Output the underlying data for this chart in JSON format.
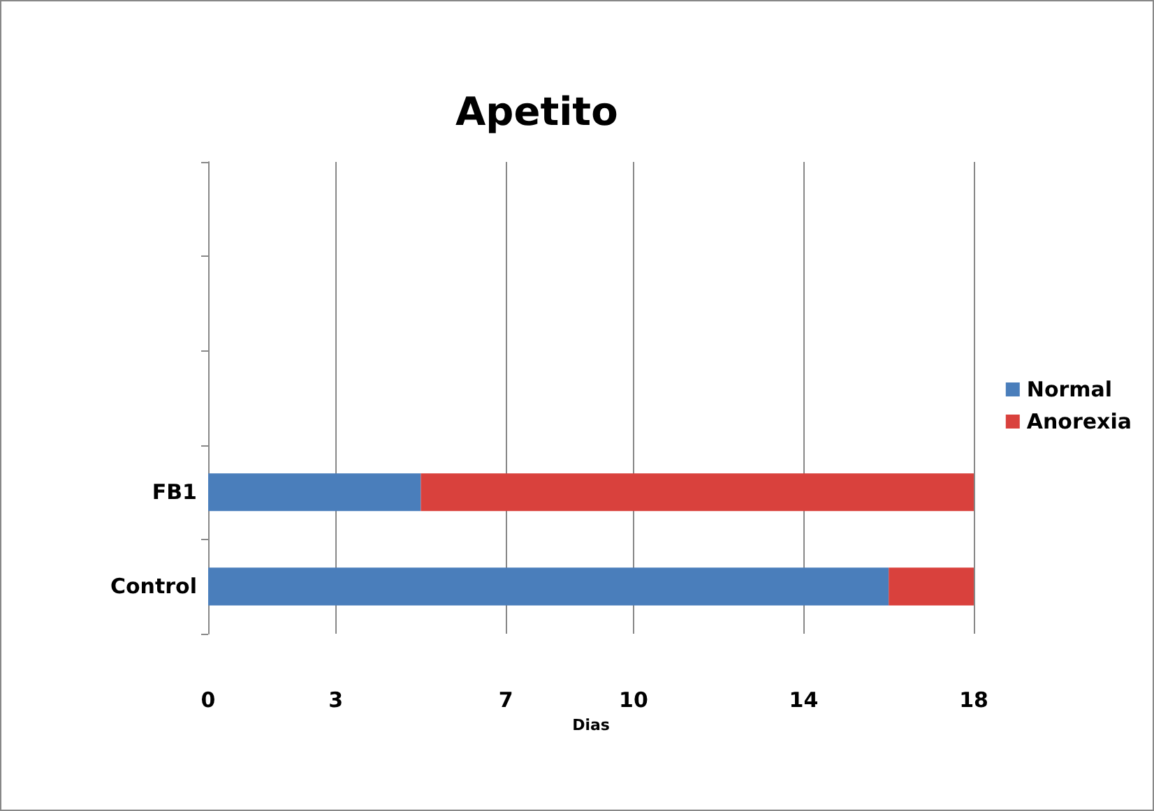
{
  "chart_data": {
    "type": "bar",
    "orientation": "horizontal",
    "stacked": true,
    "title": "Apetito",
    "xlabel": "Dias",
    "categories": [
      null,
      null,
      null,
      "FB1",
      "Control"
    ],
    "series": [
      {
        "name": "Normal",
        "color": "#4a7ebb",
        "values": [
          null,
          null,
          null,
          5,
          16
        ]
      },
      {
        "name": "Anorexia",
        "color": "#d9413d",
        "values": [
          null,
          null,
          null,
          13,
          2
        ]
      }
    ],
    "xlim": [
      0,
      18
    ],
    "xticks": [
      0,
      3,
      7,
      10,
      14,
      18
    ],
    "grid": "x",
    "legend": "right"
  }
}
